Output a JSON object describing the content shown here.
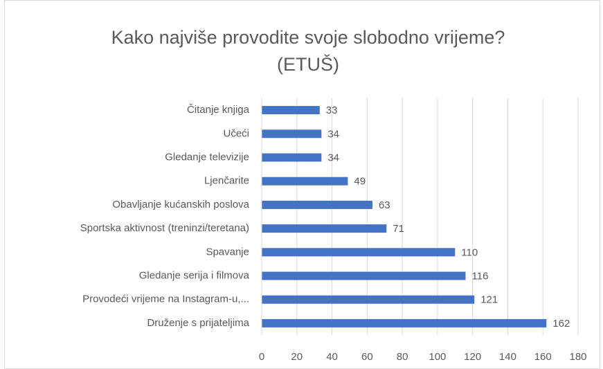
{
  "chart_data": {
    "type": "bar",
    "orientation": "horizontal",
    "title": [
      "Kako najviše provodite svoje slobodno vrijeme?",
      "(ETUŠ)"
    ],
    "categories": [
      "Čitanje knjiga",
      "Učeći",
      "Gledanje televizije",
      "Ljenčarite",
      "Obavljanje kućanskih poslova",
      "Sportska aktivnost (treninzi/teretana)",
      "Spavanje",
      "Gledanje serija i filmova",
      "Provodeći vrijeme na Instagram-u,...",
      "Druženje s prijateljima"
    ],
    "values": [
      33,
      34,
      34,
      49,
      63,
      71,
      110,
      116,
      121,
      162
    ],
    "color": "#4472c4",
    "xlim": [
      0,
      180
    ],
    "xticks": [
      0,
      20,
      40,
      60,
      80,
      100,
      120,
      140,
      160,
      180
    ],
    "grid": true
  }
}
